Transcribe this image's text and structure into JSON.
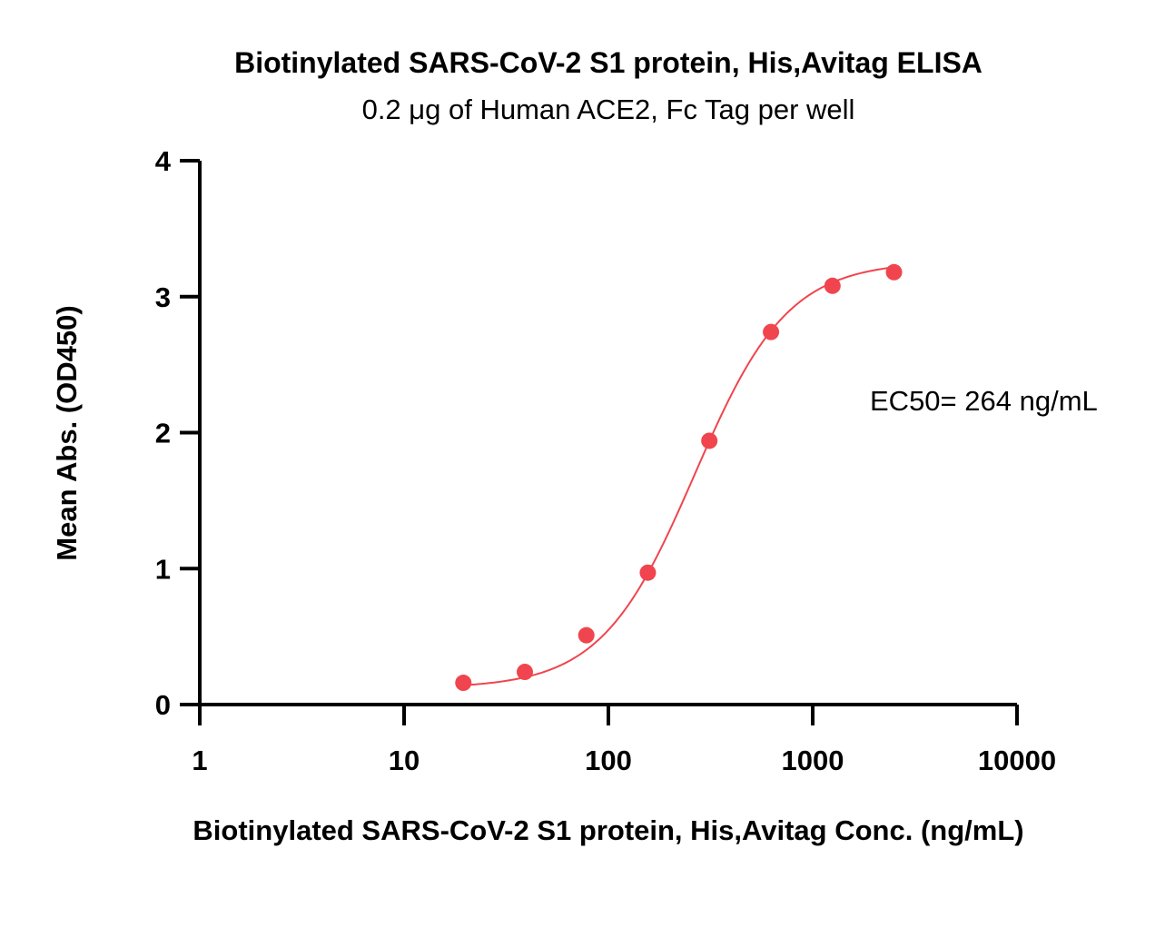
{
  "chart_data": {
    "type": "scatter",
    "title": "Biotinylated SARS-CoV-2 S1 protein, His,Avitag ELISA",
    "subtitle": "0.2 μg of Human ACE2, Fc Tag per well",
    "xlabel": "Biotinylated SARS-CoV-2 S1 protein, His,Avitag Conc. (ng/mL)",
    "ylabel": "Mean Abs. (OD450)",
    "xscale": "log",
    "xlim": [
      1,
      10000
    ],
    "ylim": [
      0,
      4
    ],
    "xticks": [
      1,
      10,
      100,
      1000,
      10000
    ],
    "xtick_labels": [
      "1",
      "10",
      "100",
      "1000",
      "10000"
    ],
    "yticks": [
      0,
      1,
      2,
      3,
      4
    ],
    "ytick_labels": [
      "0",
      "1",
      "2",
      "3",
      "4"
    ],
    "grid": false,
    "color": "#f0454e",
    "series": [
      {
        "x": [
          19.5,
          39,
          78,
          156,
          312,
          625,
          1250,
          2500
        ],
        "y": [
          0.16,
          0.24,
          0.51,
          0.97,
          1.94,
          2.74,
          3.08,
          3.18
        ]
      }
    ],
    "fit": {
      "model": "4PL",
      "bottom": 0.12,
      "top": 3.26,
      "ec50": 264,
      "hill": 1.9
    },
    "annotation": "EC50= 264 ng/mL"
  }
}
